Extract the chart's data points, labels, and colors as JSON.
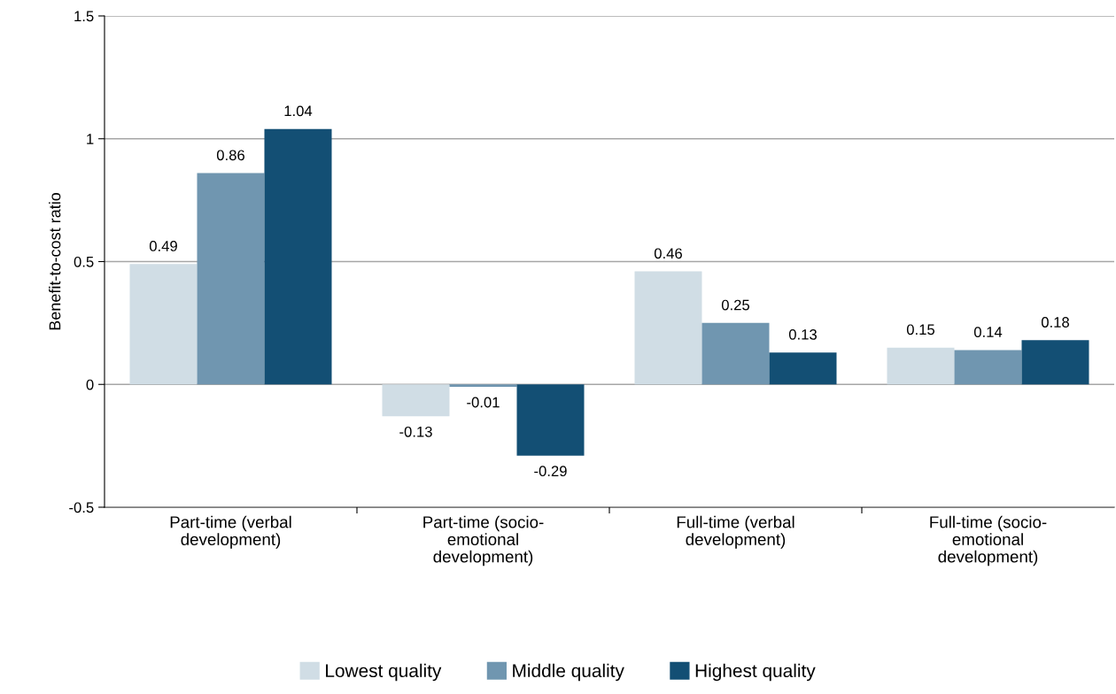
{
  "chart_data": {
    "type": "bar",
    "ylabel": "Benefit-to-cost ratio",
    "categories": [
      "Part-time (verbal\ndevelopment)",
      "Part-time (socio-\nemotional\ndevelopment)",
      "Full-time (verbal\ndevelopment)",
      "Full-time (socio-\nemotional\ndevelopment)"
    ],
    "series": [
      {
        "name": "Lowest quality",
        "color": "#d0dde5",
        "values": [
          0.49,
          -0.13,
          0.46,
          0.15
        ]
      },
      {
        "name": "Middle quality",
        "color": "#7096b0",
        "values": [
          0.86,
          -0.01,
          0.25,
          0.14
        ]
      },
      {
        "name": "Highest quality",
        "color": "#134f74",
        "values": [
          1.04,
          -0.29,
          0.13,
          0.18
        ]
      }
    ],
    "ylim": [
      -0.5,
      1.5
    ],
    "yticks": [
      -0.5,
      0,
      0.5,
      1,
      1.5
    ],
    "grid": "y",
    "legend": "bottom",
    "data_labels": true
  }
}
